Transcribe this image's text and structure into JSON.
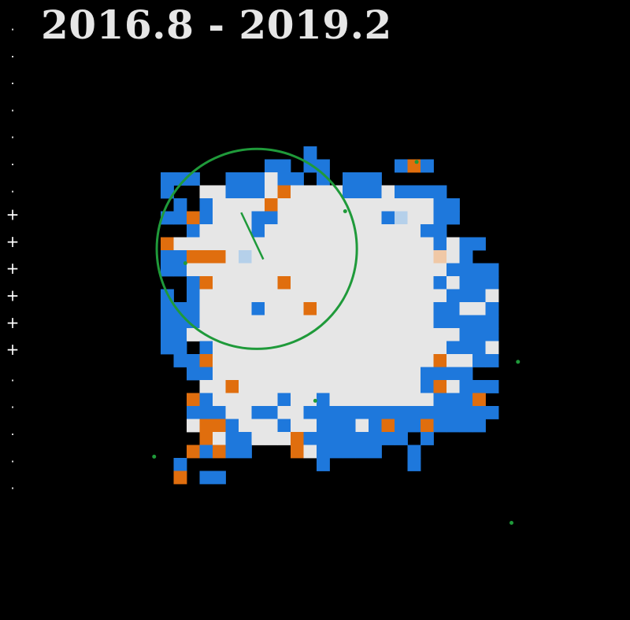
{
  "title": "2016.8 - 2019.2",
  "colors": {
    "background": "#000000",
    "white": "#e6e6e6",
    "blue": "#1e78dc",
    "orange": "#e06e0e",
    "light_blue": "#b5d0ea",
    "peach": "#f0c8a6",
    "green": "#1f9a3a",
    "axis": "#ffffff"
  },
  "chart_data": {
    "type": "heatmap",
    "title": "2016.8 - 2019.2",
    "cell_size": 1,
    "grid_origin": [
      0,
      0
    ],
    "legend": "W = light grey/white cell, B = blue cell, O = orange cell, L = light-blue cell, P = peach cell, . = empty (black)",
    "rows": [
      "...........B..............",
      "........BB.BB.....BOB.....",
      "BBB..BBBWBB.B.BBB.........",
      "B..WWBBBWOWWWWBBBWBBBB....",
      ".B.BWWWWOWWWWWWWWWWWWBB...",
      "BBOBWWWBBWWWWWWWWBLWWBB...",
      "..BWWWWBWWWWWWWWWWWWBB....",
      "OWWWWWWWWWWWWWWWWWWWWBWBB.",
      "BBOOOWLWWWWWWWWWWWWWWPWB..",
      "BBWWWWWWWWWWWWWWWWWWWWBBBB",
      "..BOWWWWWOWWWWWWWWWWWBWBBB",
      "B.BWWWWWWWWWWWWWWWWWWWBBBW",
      "BBBWWWWBWWWOWWWWWWWWWBBWWB",
      "BBBWWWWWWWWWWWWWWWWWWBBBBB",
      "BBWWWWWWWWWWWWWWWWWWWWWBBB",
      "BB.BWWWWWWWWWWWWWWWWWWBBBW",
      ".BBOWWWWWWWWWWWWWWWWWOWWBB",
      "..BBWWWWWWWWWWWWWWWWBBBB..",
      "...WWOWWWWWWWWWWWWWWBOWBBB",
      "..OBWWWWWBWWBWWWWWWWWBBBO.",
      "..BBBWWBBWWBBBBBBBBBBBBBBB",
      "..WOOBWWWBWWBBBWBOBBOBBBB.",
      "...OWBBWWWOBBBBBBBB.B.....",
      "..OBOBB...OWBBBBB..B......",
      ".B..........B......B......",
      ".O.BB....................."
    ],
    "overlays": {
      "circle": {
        "center": [
          7.4,
          7.9
        ],
        "radius": 7.7
      },
      "vector": {
        "from": [
          7.9,
          8.7
        ],
        "to": [
          6.2,
          5.1
        ]
      },
      "points": [
        [
          1.9,
          9.0
        ],
        [
          14.2,
          5.0
        ],
        [
          11.9,
          19.6
        ],
        [
          -0.5,
          23.9
        ],
        [
          27.5,
          16.6
        ],
        [
          19.7,
          1.2
        ],
        [
          27.0,
          29.0
        ]
      ]
    },
    "y_axis_ticks": [
      ".",
      ".",
      ".",
      ".",
      ".",
      ".",
      ".",
      "+",
      "+",
      "+",
      "+",
      "+",
      "+",
      ".",
      ".",
      ".",
      ".",
      "."
    ],
    "grid": false
  }
}
